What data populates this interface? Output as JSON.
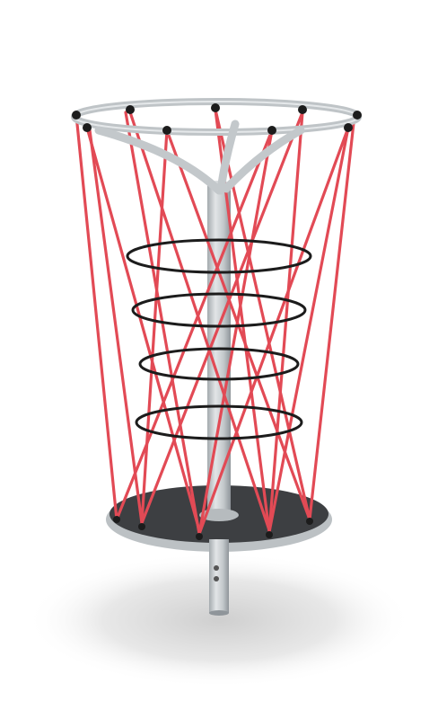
{
  "image": {
    "subject": "net-climber-playground-equipment",
    "colors": {
      "background": "#ffffff",
      "steel": "#c5c9cc",
      "steel_dark": "#9aa0a5",
      "rope": "#e24a55",
      "ring": "#1c1c1c",
      "base_mat": "#3d3f42",
      "shadow": "#d9d9d9"
    }
  }
}
